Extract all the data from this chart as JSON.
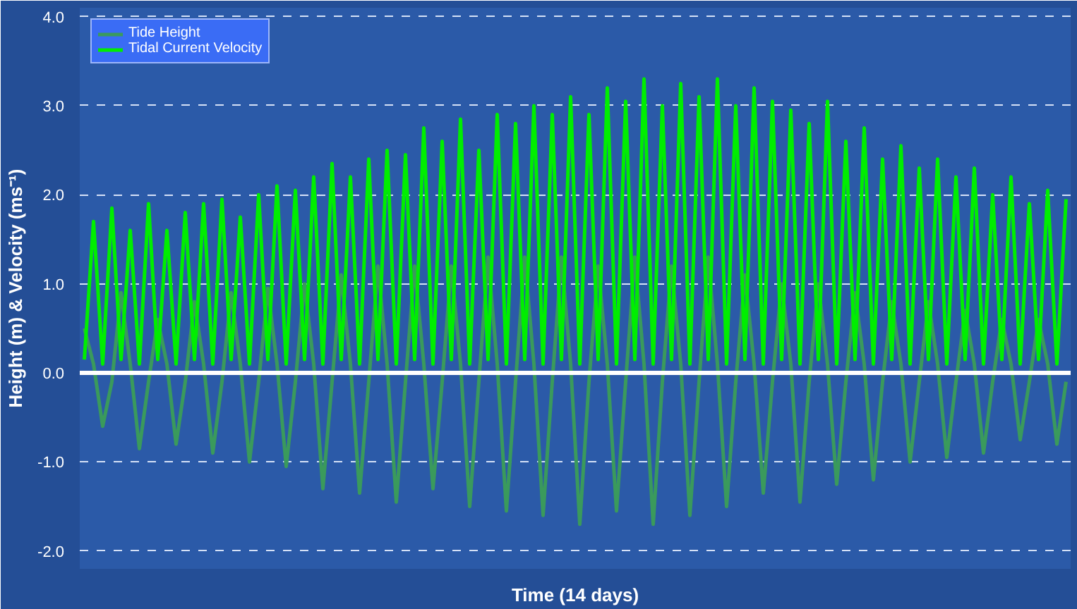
{
  "chart_data": {
    "type": "line",
    "xlabel": "Time (14 days)",
    "ylabel": "Height (m) & Velocity (ms⁻¹)",
    "categories": [
      null,
      null,
      null,
      null,
      null,
      null,
      null,
      null,
      null,
      null,
      null,
      null,
      null,
      null,
      null,
      null,
      null,
      null,
      null,
      null,
      null,
      null,
      null,
      null,
      null,
      null,
      null,
      null,
      null,
      null,
      null,
      null,
      null,
      null,
      null,
      null,
      null,
      null,
      null,
      null,
      null,
      null,
      null,
      null,
      null,
      null,
      null,
      null,
      null,
      null,
      null,
      null,
      null,
      null,
      null,
      null,
      null,
      null,
      null,
      null,
      null,
      null,
      null,
      null,
      null,
      null,
      null,
      null,
      null,
      null,
      null,
      null,
      null,
      null,
      null,
      null,
      null,
      null,
      null,
      null,
      null,
      null,
      null,
      null,
      null,
      null,
      null,
      null,
      null,
      null,
      null,
      null,
      null,
      null,
      null,
      null,
      null,
      null,
      null,
      null,
      null,
      null,
      null,
      null,
      null,
      null,
      null,
      null
    ],
    "series": [
      {
        "name": "Tide Height",
        "color": "#3a9a5c",
        "values": [
          0.5,
          0.1,
          -0.6,
          -0.1,
          0.9,
          0.1,
          -0.85,
          -0.1,
          0.6,
          0.1,
          -0.8,
          -0.1,
          0.8,
          0.1,
          -0.9,
          -0.1,
          0.9,
          0.1,
          -1.0,
          -0.1,
          0.95,
          0.1,
          -1.05,
          -0.1,
          1.0,
          0.1,
          -1.3,
          -0.1,
          1.1,
          0.1,
          -1.35,
          -0.1,
          1.2,
          0.1,
          -1.45,
          -0.1,
          1.2,
          0.1,
          -1.3,
          -0.1,
          1.2,
          0.1,
          -1.5,
          -0.1,
          1.3,
          0.1,
          -1.55,
          -0.1,
          1.3,
          0.1,
          -1.6,
          -0.1,
          1.3,
          0.1,
          -1.7,
          -0.1,
          1.2,
          0.1,
          -1.55,
          -0.1,
          1.3,
          0.1,
          -1.7,
          -0.1,
          1.2,
          0.1,
          -1.6,
          -0.1,
          1.3,
          0.1,
          -1.5,
          -0.1,
          1.1,
          0.1,
          -1.35,
          -0.1,
          1.0,
          0.1,
          -1.45,
          -0.1,
          1.0,
          0.1,
          -1.25,
          -0.1,
          0.9,
          0.1,
          -1.2,
          -0.1,
          0.8,
          0.1,
          -1.0,
          -0.1,
          0.8,
          0.1,
          -0.95,
          -0.1,
          0.7,
          0.1,
          -0.9,
          -0.1,
          0.6,
          0.1,
          -0.75,
          -0.1,
          0.6,
          0.1,
          -0.8,
          -0.1
        ]
      },
      {
        "name": "Tidal Current Velocity",
        "color": "#00ee00",
        "values": [
          0.15,
          1.7,
          0.1,
          1.85,
          0.15,
          1.6,
          0.1,
          1.9,
          0.15,
          1.6,
          0.1,
          1.8,
          0.15,
          1.9,
          0.1,
          1.95,
          0.15,
          1.75,
          0.1,
          2.0,
          0.15,
          2.1,
          0.1,
          2.05,
          0.15,
          2.2,
          0.1,
          2.35,
          0.15,
          2.2,
          0.1,
          2.4,
          0.15,
          2.5,
          0.1,
          2.45,
          0.15,
          2.75,
          0.1,
          2.6,
          0.15,
          2.85,
          0.1,
          2.5,
          0.15,
          2.9,
          0.1,
          2.8,
          0.15,
          3.0,
          0.1,
          2.9,
          0.15,
          3.1,
          0.1,
          2.9,
          0.15,
          3.2,
          0.1,
          3.05,
          0.15,
          3.3,
          0.1,
          3.0,
          0.15,
          3.25,
          0.1,
          3.1,
          0.15,
          3.3,
          0.1,
          3.0,
          0.15,
          3.2,
          0.1,
          3.05,
          0.15,
          2.95,
          0.1,
          2.8,
          0.15,
          3.05,
          0.1,
          2.6,
          0.15,
          2.75,
          0.1,
          2.4,
          0.15,
          2.55,
          0.1,
          2.3,
          0.15,
          2.4,
          0.1,
          2.2,
          0.15,
          2.3,
          0.1,
          2.0,
          0.15,
          2.2,
          0.1,
          1.9,
          0.15,
          2.05,
          0.1,
          1.95
        ]
      }
    ],
    "ylim": [
      -2.2,
      4.1
    ],
    "yticks": [
      {
        "value": -2,
        "label": "-2.0"
      },
      {
        "value": -1,
        "label": "-1.0"
      },
      {
        "value": 0,
        "label": "0.0"
      },
      {
        "value": 1,
        "label": "1.0"
      },
      {
        "value": 2,
        "label": "2.0"
      },
      {
        "value": 3,
        "label": "3.0"
      },
      {
        "value": 4,
        "label": "4.0"
      }
    ],
    "ref_lines": [
      {
        "axis": "y",
        "value": 0,
        "color": "#ffffff",
        "line_style": "solid"
      }
    ],
    "grid": "y",
    "legend": "top left",
    "tick_labels": "y",
    "line_style": "solid"
  }
}
